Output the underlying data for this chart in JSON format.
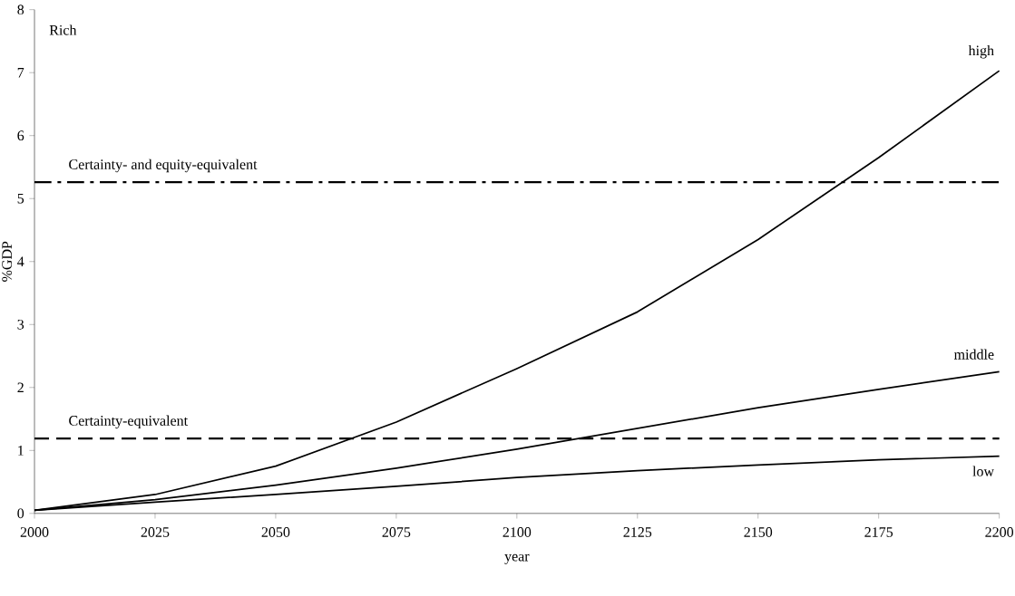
{
  "chart_data": {
    "type": "line",
    "xlabel": "year",
    "ylabel": "%GDP",
    "annotations": [
      "Rich"
    ],
    "x": [
      2000,
      2025,
      2050,
      2075,
      2100,
      2125,
      2150,
      2175,
      2200
    ],
    "series": [
      {
        "name": "high",
        "color": "#000000",
        "values": [
          0.05,
          0.3,
          0.75,
          1.45,
          2.3,
          3.2,
          4.35,
          5.65,
          7.03
        ]
      },
      {
        "name": "middle",
        "color": "#000000",
        "values": [
          0.05,
          0.22,
          0.45,
          0.72,
          1.02,
          1.35,
          1.68,
          1.97,
          2.25
        ]
      },
      {
        "name": "low",
        "color": "#000000",
        "values": [
          0.05,
          0.18,
          0.3,
          0.43,
          0.57,
          0.68,
          0.77,
          0.85,
          0.91
        ]
      }
    ],
    "ref_lines": [
      {
        "axis": "y",
        "value": 5.26,
        "label": "Certainty- and equity-equivalent",
        "color": "#000000",
        "line_style": "dashdot"
      },
      {
        "axis": "y",
        "value": 1.19,
        "label": "Certainty-equivalent",
        "color": "#000000",
        "line_style": "dashed"
      }
    ],
    "xlim": [
      2000,
      2200
    ],
    "ylim": [
      0,
      8
    ],
    "xticks": [
      2000,
      2025,
      2050,
      2075,
      2100,
      2125,
      2150,
      2175,
      2200
    ],
    "yticks": [
      0,
      1,
      2,
      3,
      4,
      5,
      6,
      7,
      8
    ],
    "grid": false,
    "legend": false,
    "marker": "none",
    "line_style": "solid"
  }
}
